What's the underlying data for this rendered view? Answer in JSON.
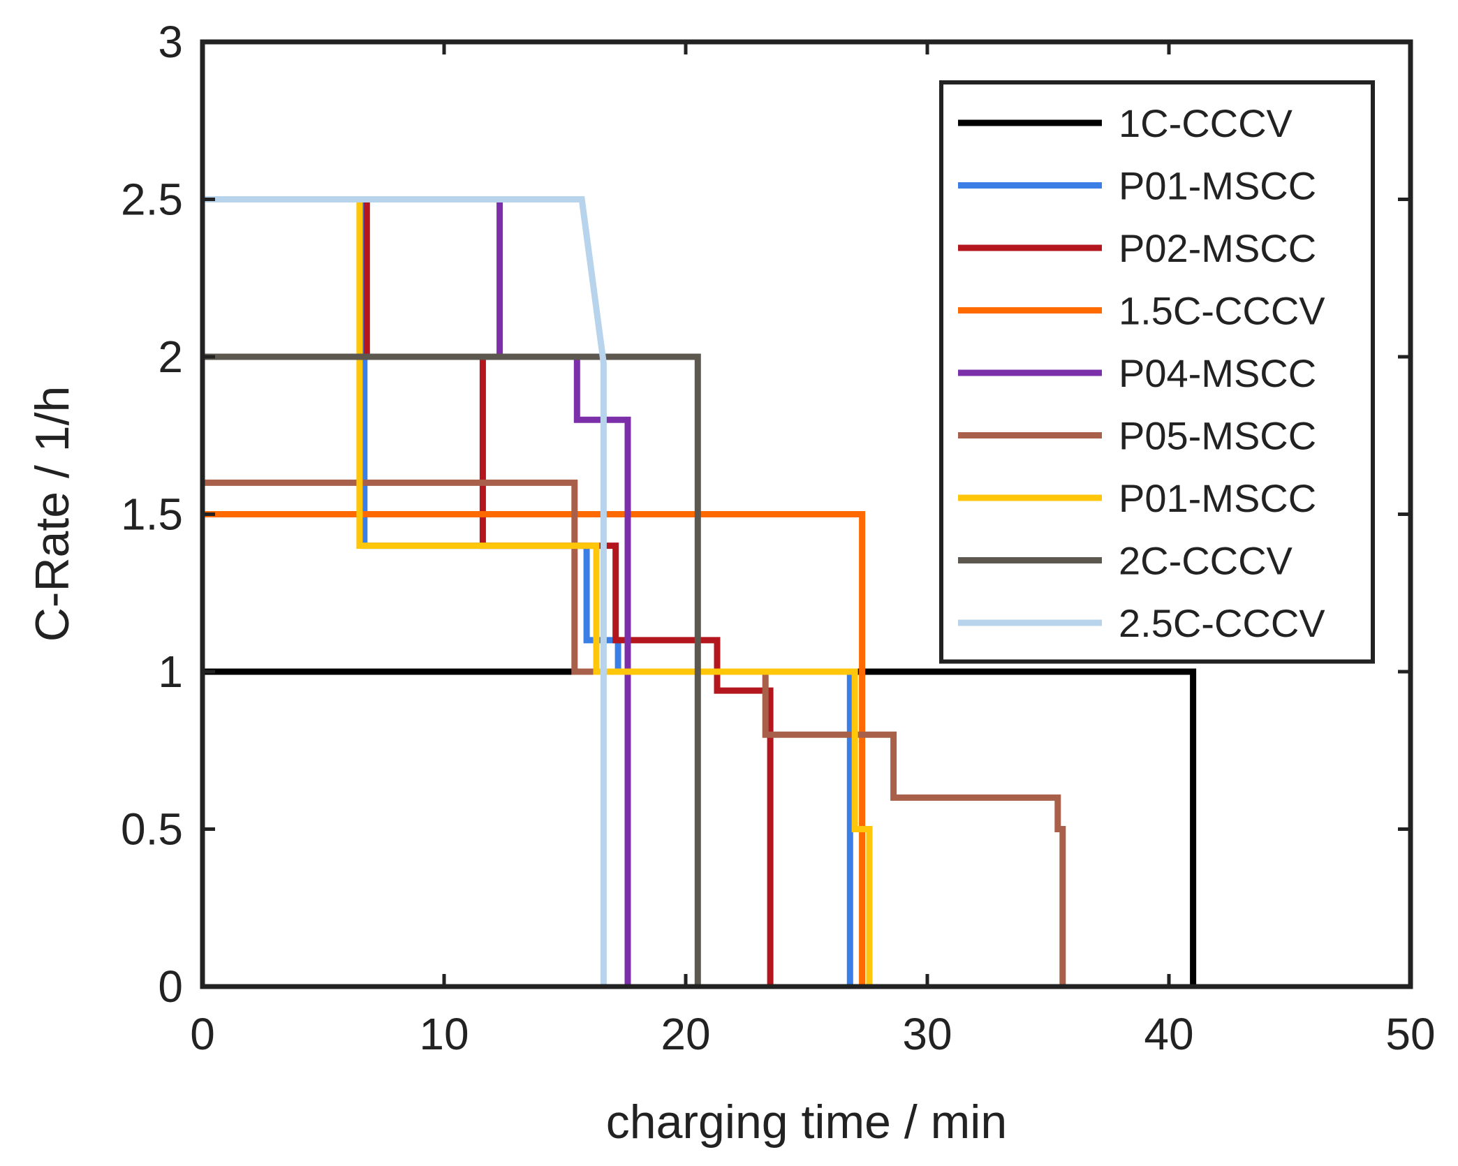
{
  "chart_data": {
    "type": "line",
    "title": "",
    "xlabel": "charging time  / min",
    "ylabel": "C-Rate  / 1/h",
    "xlim": [
      0,
      50
    ],
    "ylim": [
      0,
      3
    ],
    "xticks": [
      0,
      10,
      20,
      30,
      40,
      50
    ],
    "yticks": [
      0,
      0.5,
      1,
      1.5,
      2,
      2.5,
      3
    ],
    "xtick_labels": [
      "0",
      "10",
      "20",
      "30",
      "40",
      "50"
    ],
    "ytick_labels": [
      "0",
      "0.5",
      "1",
      "1.5",
      "2",
      "2.5",
      "3"
    ],
    "grid": false,
    "legend_position": "top-right",
    "series": [
      {
        "name": "1C-CCCV",
        "color": "#000000",
        "points": [
          [
            0,
            1
          ],
          [
            41,
            1
          ],
          [
            41,
            0
          ]
        ]
      },
      {
        "name": "P01-MSCC",
        "color": "#3b7fe6",
        "points": [
          [
            0,
            2.5
          ],
          [
            6.7,
            2.5
          ],
          [
            6.7,
            1.4
          ],
          [
            15.9,
            1.4
          ],
          [
            15.9,
            1.1
          ],
          [
            17.2,
            1.1
          ],
          [
            17.2,
            1.0
          ],
          [
            26.8,
            1.0
          ],
          [
            26.8,
            0
          ]
        ]
      },
      {
        "name": "P02-MSCC",
        "color": "#b3161c",
        "points": [
          [
            0,
            2.5
          ],
          [
            6.8,
            2.5
          ],
          [
            6.8,
            2.0
          ],
          [
            11.6,
            2.0
          ],
          [
            11.6,
            1.4
          ],
          [
            17.1,
            1.4
          ],
          [
            17.1,
            1.1
          ],
          [
            21.3,
            1.1
          ],
          [
            21.3,
            0.94
          ],
          [
            23.5,
            0.94
          ],
          [
            23.5,
            0
          ]
        ]
      },
      {
        "name": "1.5C-CCCV",
        "color": "#ff6a00",
        "points": [
          [
            0,
            1.5
          ],
          [
            27.3,
            1.5
          ],
          [
            27.3,
            0
          ]
        ]
      },
      {
        "name": "P04-MSCC",
        "color": "#7b2fa8",
        "points": [
          [
            0,
            2.5
          ],
          [
            12.3,
            2.5
          ],
          [
            12.3,
            2.0
          ],
          [
            15.5,
            2.0
          ],
          [
            15.5,
            1.8
          ],
          [
            17.6,
            1.8
          ],
          [
            17.6,
            0
          ]
        ]
      },
      {
        "name": "P05-MSCC",
        "color": "#a8604a",
        "points": [
          [
            0,
            1.6
          ],
          [
            15.4,
            1.6
          ],
          [
            15.4,
            1.0
          ],
          [
            23.3,
            1.0
          ],
          [
            23.3,
            0.8
          ],
          [
            28.6,
            0.8
          ],
          [
            28.6,
            0.6
          ],
          [
            35.4,
            0.6
          ],
          [
            35.4,
            0.5
          ],
          [
            35.6,
            0.5
          ],
          [
            35.6,
            0
          ]
        ]
      },
      {
        "name": "P01-MSCC",
        "color": "#ffc60a",
        "points": [
          [
            0,
            2.5
          ],
          [
            6.5,
            2.5
          ],
          [
            6.5,
            1.4
          ],
          [
            16.3,
            1.4
          ],
          [
            16.3,
            1.0
          ],
          [
            27.0,
            1.0
          ],
          [
            27.0,
            0.5
          ],
          [
            27.6,
            0.5
          ],
          [
            27.6,
            0
          ]
        ]
      },
      {
        "name": "2C-CCCV",
        "color": "#5c5850",
        "points": [
          [
            0,
            2.0
          ],
          [
            20.5,
            2.0
          ],
          [
            20.5,
            0
          ]
        ]
      },
      {
        "name": "2.5C-CCCV",
        "color": "#b8d4ec",
        "points": [
          [
            0,
            2.5
          ],
          [
            15.7,
            2.5
          ],
          [
            16.6,
            1.98
          ],
          [
            16.6,
            0
          ]
        ]
      }
    ]
  }
}
